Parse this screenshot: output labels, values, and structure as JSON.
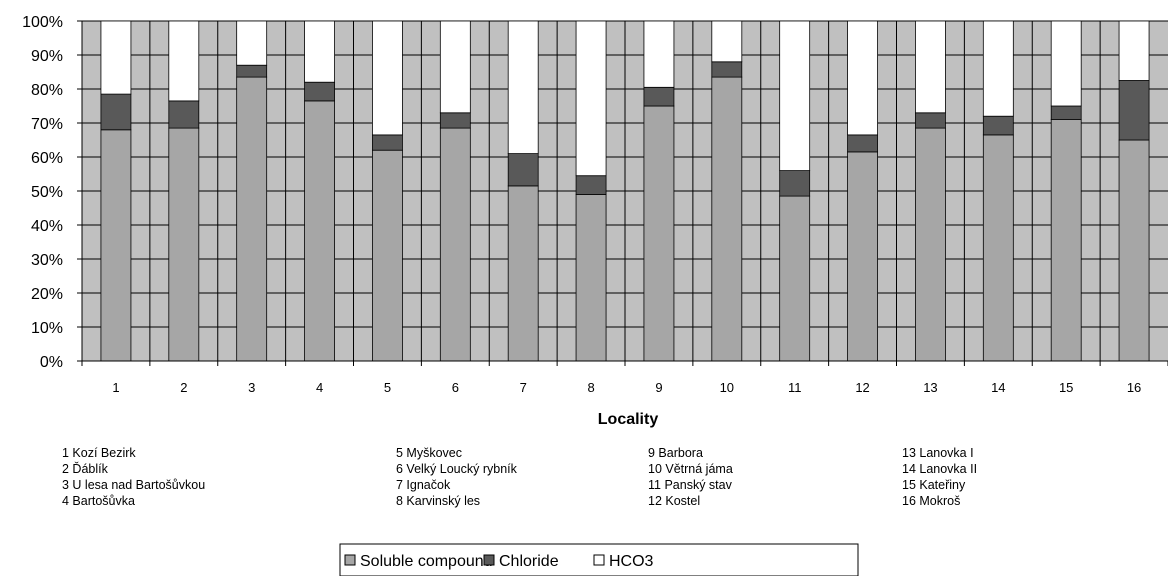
{
  "chart_data": {
    "type": "bar",
    "stacked": true,
    "normalized": true,
    "categories": [
      "1",
      "2",
      "3",
      "4",
      "5",
      "6",
      "7",
      "8",
      "9",
      "10",
      "11",
      "12",
      "13",
      "14",
      "15",
      "16"
    ],
    "series": [
      {
        "name": "Soluble compound",
        "color": "#a6a6a6",
        "values": [
          68,
          68.5,
          83.5,
          76.5,
          62,
          68.5,
          51.5,
          49,
          75,
          83.5,
          48.5,
          61.5,
          68.5,
          66.5,
          71,
          65
        ]
      },
      {
        "name": "Chloride",
        "color": "#595959",
        "values": [
          10.5,
          8,
          3.5,
          5.5,
          4.5,
          4.5,
          9.5,
          5.5,
          5.5,
          4.5,
          7.5,
          5,
          4.5,
          5.5,
          4,
          17.5
        ]
      },
      {
        "name": "HCO3",
        "color": "#ffffff",
        "values": [
          21.5,
          23.5,
          13,
          18,
          33.5,
          27,
          39,
          45.5,
          19.5,
          12,
          44,
          33.5,
          27,
          28,
          25,
          17.5
        ]
      }
    ],
    "ylim": [
      0,
      100
    ],
    "yticks": [
      "0%",
      "10%",
      "20%",
      "30%",
      "40%",
      "50%",
      "60%",
      "70%",
      "80%",
      "90%",
      "100%"
    ],
    "xlabel": "Locality",
    "ylabel": "",
    "grid": "both",
    "plot_background": "#c0c0c0",
    "legend_position": "bottom-center",
    "locality_notes": [
      [
        "1 Kozí Bezirk",
        "2 Ďáblík",
        "3 U lesa nad Bartošůvkou",
        "4 Bartošůvka"
      ],
      [
        "5 Myškovec",
        "6 Velký Loucký rybník",
        "7 Ignačok",
        "8 Karvinský les"
      ],
      [
        "9   Barbora",
        "10 Větrná jáma",
        "11 Panský stav",
        "12 Kostel"
      ],
      [
        "13 Lanovka I",
        "14 Lanovka II",
        "15 Kateřiny",
        "16 Mokroš"
      ]
    ]
  }
}
